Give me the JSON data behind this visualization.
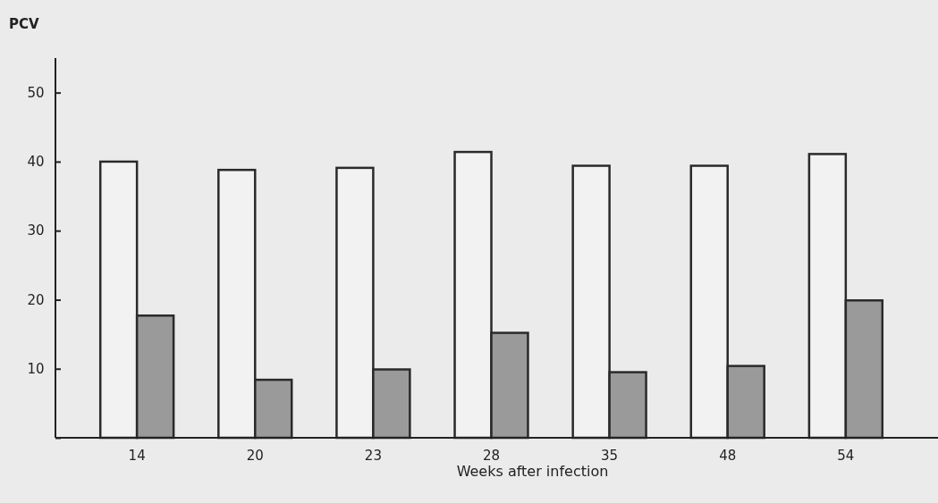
{
  "chart_data": {
    "type": "bar",
    "ylabel": "PCV",
    "xlabel": "Weeks after infection",
    "categories": [
      "14",
      "20",
      "23",
      "28",
      "35",
      "48",
      "54"
    ],
    "series": [
      {
        "color": "#f2f2f2",
        "values": [
          40,
          38.8,
          39.1,
          41.4,
          39.4,
          39.4,
          41.1
        ]
      },
      {
        "color": "#9a9a9a",
        "values": [
          17.7,
          8.4,
          9.9,
          15.2,
          9.5,
          10.4,
          19.9
        ]
      }
    ],
    "ylim": [
      0,
      55
    ],
    "yticks": [
      {
        "value": 0,
        "label": null
      },
      10,
      20,
      30,
      40,
      50
    ]
  }
}
